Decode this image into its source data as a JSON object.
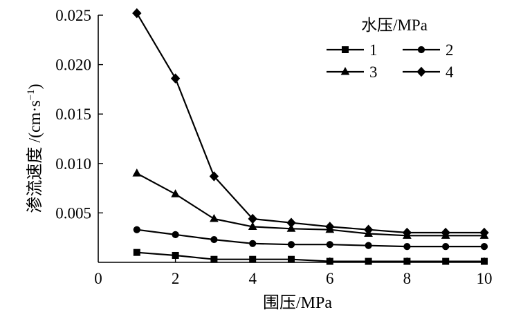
{
  "chart_data": {
    "type": "line",
    "xlabel": "围压/MPa",
    "ylabel": "渗流速度 /(cm·s",
    "ylabel_sup": "−1",
    "ylabel_tail": ")",
    "xlim": [
      0,
      10
    ],
    "ylim": [
      0,
      0.025
    ],
    "x_ticks": [
      0,
      2,
      4,
      6,
      8,
      10
    ],
    "y_ticks": [
      0.005,
      0.01,
      0.015,
      0.02,
      0.025
    ],
    "x_tick_labels": [
      "0",
      "2",
      "4",
      "6",
      "8",
      "10"
    ],
    "y_tick_labels": [
      "0.005",
      "0.010",
      "0.015",
      "0.020",
      "0.025"
    ],
    "grid": false,
    "legend": {
      "title": "水压/MPa",
      "placement": "top-right"
    },
    "x": [
      1,
      2,
      3,
      4,
      5,
      6,
      7,
      8,
      9,
      10
    ],
    "series": [
      {
        "name": "1",
        "marker": "square",
        "values": [
          0.001,
          0.0007,
          0.0003,
          0.0003,
          0.0003,
          0.0001,
          0.0001,
          0.0001,
          0.0001,
          0.0001
        ]
      },
      {
        "name": "2",
        "marker": "circle",
        "values": [
          0.0033,
          0.0028,
          0.0023,
          0.0019,
          0.0018,
          0.0018,
          0.0017,
          0.0016,
          0.0016,
          0.0016
        ]
      },
      {
        "name": "3",
        "marker": "triangle",
        "values": [
          0.009,
          0.0069,
          0.0044,
          0.0036,
          0.0034,
          0.0033,
          0.0029,
          0.0027,
          0.0027,
          0.0027
        ]
      },
      {
        "name": "4",
        "marker": "diamond",
        "values": [
          0.0252,
          0.0186,
          0.0087,
          0.0044,
          0.004,
          0.0036,
          0.0033,
          0.003,
          0.003,
          0.003
        ]
      }
    ],
    "colors": {
      "line": "#000000",
      "background": "#ffffff"
    }
  }
}
